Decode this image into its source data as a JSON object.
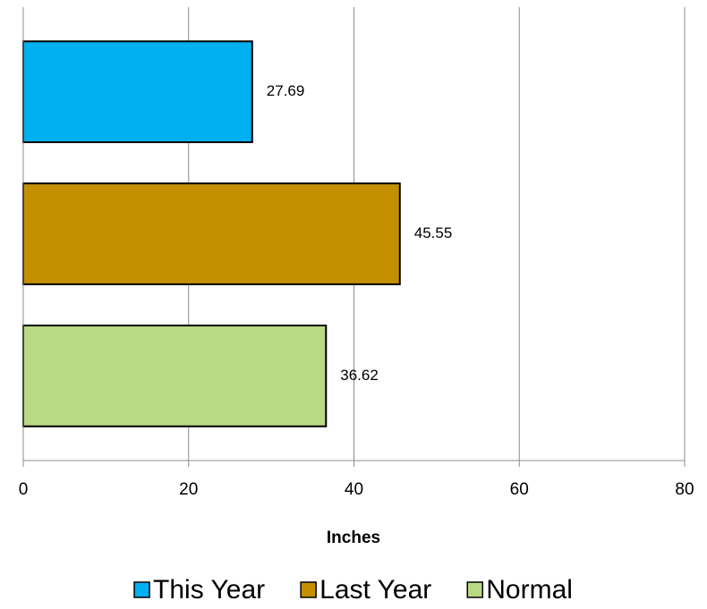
{
  "chart_data": {
    "type": "bar",
    "orientation": "horizontal",
    "categories": [
      null
    ],
    "series": [
      {
        "name": "This Year",
        "color": "#00b0f0",
        "values": [
          27.69
        ]
      },
      {
        "name": "Last Year",
        "color": "#c49000",
        "values": [
          45.55
        ]
      },
      {
        "name": "Normal",
        "color": "#b9d985",
        "values": [
          36.62
        ]
      }
    ],
    "xlabel": "Inches",
    "xlim": [
      0,
      80
    ],
    "xticks": [
      0,
      20,
      40,
      60,
      80
    ],
    "grid": true,
    "legend": "bottom"
  }
}
